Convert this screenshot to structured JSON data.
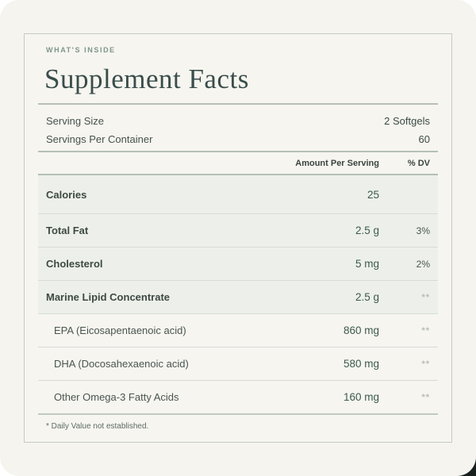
{
  "header": {
    "eyebrow": "WHAT'S INSIDE",
    "title": "Supplement Facts"
  },
  "serving": {
    "rows": [
      {
        "label": "Serving Size",
        "value": "2 Softgels"
      },
      {
        "label": "Servings Per Container",
        "value": "60"
      }
    ]
  },
  "table": {
    "col_amount": "Amount Per Serving",
    "col_dv": "% DV",
    "rows": [
      {
        "label": "Calories",
        "amount": "25",
        "dv": ""
      },
      {
        "label": "Total Fat",
        "amount": "2.5 g",
        "dv": "3%"
      },
      {
        "label": "Cholesterol",
        "amount": "5 mg",
        "dv": "2%"
      },
      {
        "label": "Marine Lipid Concentrate",
        "amount": "2.5 g",
        "dv": "**"
      },
      {
        "label": "EPA (Eicosapentaenoic acid)",
        "amount": "860 mg",
        "dv": "**"
      },
      {
        "label": "DHA (Docosahexaenoic acid)",
        "amount": "580 mg",
        "dv": "**"
      },
      {
        "label": "Other Omega-3 Fatty Acids",
        "amount": "160 mg",
        "dv": "**"
      }
    ],
    "footnote": "* Daily Value not established."
  },
  "colors": {
    "page_background": "#f5f4ef",
    "card_border": "#c6cbc5",
    "shaded_row": "#edf0ea",
    "heavy_rule": "#b5c0b7",
    "light_divider": "#d7dcd5",
    "title_text": "#3a4d4b",
    "eyebrow_text": "#7f968a",
    "amount_text": "#3d5a4c",
    "stars_text": "#b7bcb6"
  }
}
